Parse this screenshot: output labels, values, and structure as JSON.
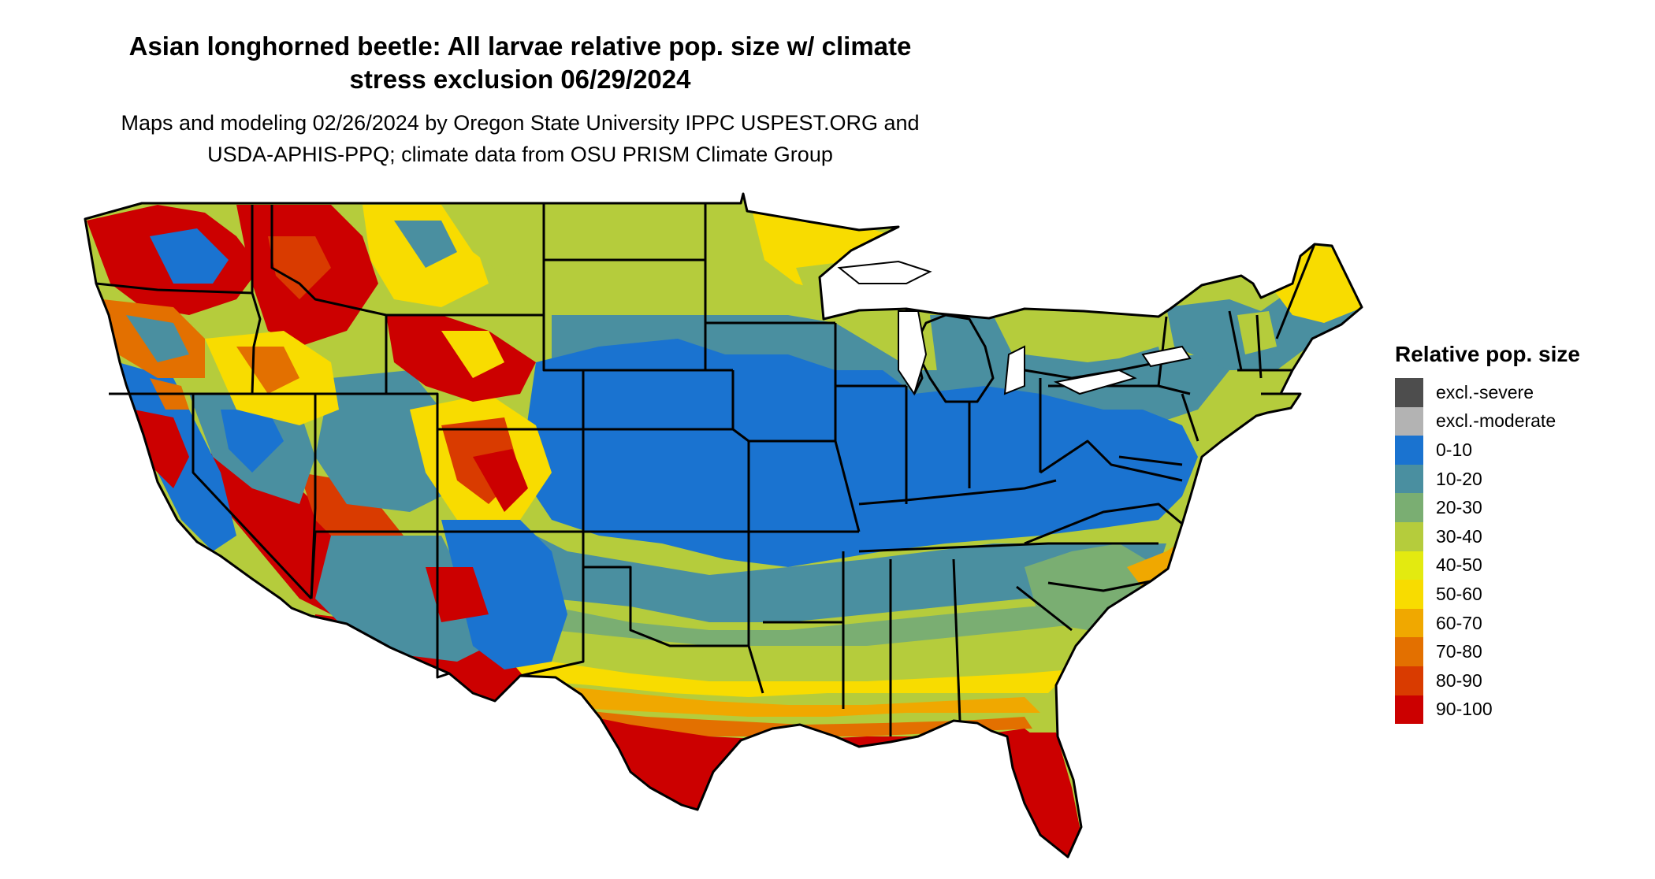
{
  "title_lines": [
    "Asian longhorned beetle: All larvae relative pop. size w/ climate",
    "stress exclusion 06/29/2024"
  ],
  "subtitle_lines": [
    "Maps and modeling 02/26/2024 by Oregon State University IPPC USPEST.ORG and",
    "USDA-APHIS-PPQ; climate data from OSU PRISM Climate Group"
  ],
  "legend": {
    "title": "Relative pop. size",
    "items": [
      {
        "label": "excl.-severe",
        "color": "#4d4d4d"
      },
      {
        "label": "excl.-moderate",
        "color": "#b3b3b3"
      },
      {
        "label": "0-10",
        "color": "#1a73d0"
      },
      {
        "label": "10-20",
        "color": "#4a8fa0"
      },
      {
        "label": "20-30",
        "color": "#7aae72"
      },
      {
        "label": "30-40",
        "color": "#b5cc3c"
      },
      {
        "label": "40-50",
        "color": "#e3ea10"
      },
      {
        "label": "50-60",
        "color": "#f8dc00"
      },
      {
        "label": "60-70",
        "color": "#f0a800"
      },
      {
        "label": "70-80",
        "color": "#e37000"
      },
      {
        "label": "80-90",
        "color": "#d93b00"
      },
      {
        "label": "90-100",
        "color": "#cc0000"
      }
    ]
  }
}
